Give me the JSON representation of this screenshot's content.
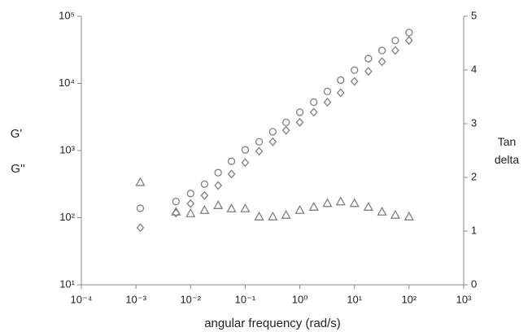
{
  "chart_data": {
    "type": "scatter",
    "x_label": "angular frequency (rad/s)",
    "y_labels": [
      "G'",
      "G''"
    ],
    "y2_label": "Tan delta",
    "x_scale": "log",
    "y_scale": "log",
    "xlim": [
      0.0001,
      1000
    ],
    "xticks": [
      {
        "value": 0.0001,
        "label": "10⁻⁴"
      },
      {
        "value": 0.001,
        "label": "10⁻³"
      },
      {
        "value": 0.01,
        "label": "10⁻²"
      },
      {
        "value": 0.1,
        "label": "10⁻¹"
      },
      {
        "value": 1,
        "label": "10⁰"
      },
      {
        "value": 10,
        "label": "10¹"
      },
      {
        "value": 100,
        "label": "10²"
      },
      {
        "value": 1000,
        "label": "10³"
      }
    ],
    "ylim": [
      10,
      100000
    ],
    "yticks": [
      {
        "value": 10,
        "label": "10¹"
      },
      {
        "value": 100,
        "label": "10²"
      },
      {
        "value": 1000,
        "label": "10³"
      },
      {
        "value": 10000,
        "label": "10⁴"
      },
      {
        "value": 100000,
        "label": "10⁵"
      }
    ],
    "y2lim": [
      0,
      5
    ],
    "y2ticks": [
      0,
      1,
      2,
      3,
      4,
      5
    ],
    "x": [
      0.0012,
      0.0054,
      0.01,
      0.018,
      0.032,
      0.056,
      0.1,
      0.18,
      0.32,
      0.56,
      1,
      1.8,
      3.2,
      5.6,
      10,
      18,
      32,
      56,
      100
    ],
    "series": [
      {
        "marker": "circle",
        "color": "#808080",
        "values": [
          138,
          174,
          229,
          316,
          468,
          692,
          1023,
          1350,
          1905,
          2630,
          3720,
          5250,
          7590,
          11200,
          15800,
          23400,
          31000,
          43600,
          57200
        ]
      },
      {
        "marker": "diamond",
        "color": "#808080",
        "values": [
          71,
          117,
          162,
          214,
          302,
          447,
          661,
          977,
          1350,
          2000,
          2630,
          3720,
          5250,
          7240,
          10700,
          15100,
          21100,
          31000,
          43600
        ]
      },
      {
        "marker": "triangle",
        "color": "#808080",
        "axis": "y2",
        "values": [
          1.91,
          1.36,
          1.33,
          1.39,
          1.48,
          1.42,
          1.42,
          1.27,
          1.27,
          1.3,
          1.39,
          1.45,
          1.52,
          1.55,
          1.52,
          1.45,
          1.36,
          1.3,
          1.27
        ]
      }
    ]
  }
}
